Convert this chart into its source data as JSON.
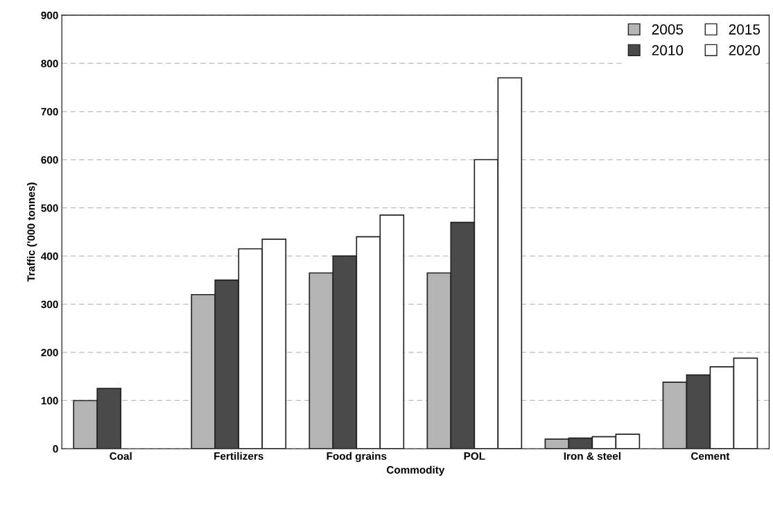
{
  "chart_data": {
    "type": "bar",
    "xlabel": "Commodity",
    "ylabel": "Traffic ('000 tonnes)",
    "categories": [
      "Coal",
      "Fertilizers",
      "Food grains",
      "POL",
      "Iron & steel",
      "Cement"
    ],
    "series": [
      {
        "name": "2005",
        "color": "#b4b4b4",
        "values": [
          100,
          320,
          365,
          365,
          20,
          138
        ]
      },
      {
        "name": "2010",
        "color": "#4a4a4a",
        "values": [
          125,
          350,
          400,
          470,
          22,
          153
        ]
      },
      {
        "name": "2015",
        "color": "#ffffff",
        "values": [
          null,
          415,
          440,
          600,
          25,
          170
        ]
      },
      {
        "name": "2020",
        "color": "#ffffff",
        "values": [
          null,
          435,
          485,
          770,
          30,
          188
        ]
      }
    ],
    "ylim": [
      0,
      900
    ],
    "yticks": [
      0,
      100,
      200,
      300,
      400,
      500,
      600,
      700,
      800,
      900
    ],
    "grid": "y",
    "legend": "top right"
  }
}
